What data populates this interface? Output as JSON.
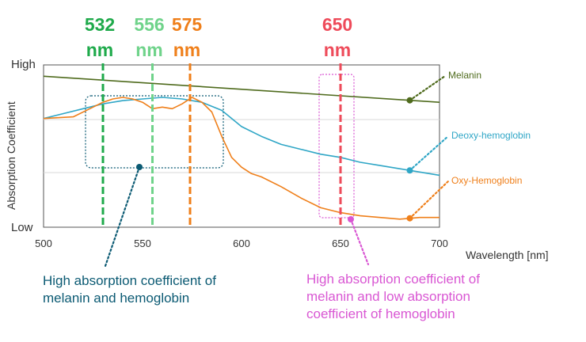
{
  "chart_data": {
    "type": "line",
    "xlabel": "Wavelength [nm]",
    "ylabel": "Absorption Coefficient",
    "xlim": [
      500,
      700
    ],
    "x_ticks": [
      "500",
      "550",
      "600",
      "650",
      "700"
    ],
    "y_ticks": {
      "high": "High",
      "low": "Low"
    },
    "grid": "horizontal, light",
    "series": [
      {
        "name": "Melanin",
        "color": "#4f6b1d",
        "points": [
          [
            500,
            0.93
          ],
          [
            700,
            0.77
          ]
        ],
        "marker_x": 685
      },
      {
        "name": "Deoxy-hemoglobin",
        "color": "#2fa6c6",
        "points": [
          [
            500,
            0.67
          ],
          [
            510,
            0.7
          ],
          [
            520,
            0.73
          ],
          [
            530,
            0.76
          ],
          [
            540,
            0.78
          ],
          [
            550,
            0.79
          ],
          [
            560,
            0.8
          ],
          [
            570,
            0.79
          ],
          [
            580,
            0.77
          ],
          [
            590,
            0.72
          ],
          [
            600,
            0.62
          ],
          [
            610,
            0.56
          ],
          [
            620,
            0.51
          ],
          [
            630,
            0.48
          ],
          [
            640,
            0.45
          ],
          [
            650,
            0.43
          ],
          [
            660,
            0.4
          ],
          [
            670,
            0.38
          ],
          [
            680,
            0.36
          ],
          [
            690,
            0.34
          ],
          [
            700,
            0.32
          ]
        ],
        "marker_x": 685
      },
      {
        "name": "Oxy-Hemoglobin",
        "color": "#ef7f1a",
        "points": [
          [
            500,
            0.67
          ],
          [
            515,
            0.68
          ],
          [
            525,
            0.74
          ],
          [
            530,
            0.77
          ],
          [
            535,
            0.79
          ],
          [
            540,
            0.8
          ],
          [
            545,
            0.79
          ],
          [
            550,
            0.77
          ],
          [
            555,
            0.73
          ],
          [
            560,
            0.74
          ],
          [
            565,
            0.73
          ],
          [
            570,
            0.76
          ],
          [
            575,
            0.8
          ],
          [
            580,
            0.77
          ],
          [
            585,
            0.71
          ],
          [
            590,
            0.56
          ],
          [
            595,
            0.43
          ],
          [
            600,
            0.37
          ],
          [
            605,
            0.33
          ],
          [
            610,
            0.31
          ],
          [
            620,
            0.25
          ],
          [
            630,
            0.18
          ],
          [
            640,
            0.12
          ],
          [
            650,
            0.09
          ],
          [
            660,
            0.07
          ],
          [
            670,
            0.06
          ],
          [
            680,
            0.05
          ],
          [
            690,
            0.06
          ],
          [
            700,
            0.06
          ]
        ],
        "marker_x": 685
      }
    ],
    "wavelength_markers": [
      {
        "value": "532",
        "unit": "nm",
        "x": 530,
        "color": "#1faa4b"
      },
      {
        "value": "556",
        "unit": "nm",
        "x": 555,
        "color": "#6fd38a"
      },
      {
        "value": "575",
        "unit": "nm",
        "x": 574,
        "color": "#ef7f1a"
      },
      {
        "value": "650",
        "unit": "nm",
        "x": 650,
        "color": "#ee4b5a"
      }
    ],
    "annotations": [
      {
        "lines": [
          "High absorption coefficient of",
          "melanin and hemoglobin"
        ],
        "color": "#0b5a73"
      },
      {
        "lines": [
          "High absorption coefficient of",
          "melanin and low absorption",
          "coefficient of hemoglobin"
        ],
        "color": "#d957d3"
      }
    ]
  }
}
